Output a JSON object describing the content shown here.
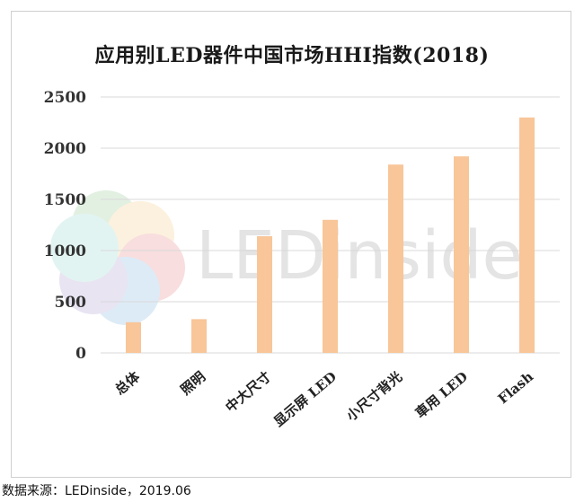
{
  "chart_data": {
    "type": "bar",
    "title": "应用别LED器件中国市场HHI指数(2018)",
    "categories": [
      "总体",
      "照明",
      "中大尺寸",
      "显示屏 LED",
      "小尺寸背光",
      "車用 LED",
      "Flash"
    ],
    "values": [
      300,
      330,
      1140,
      1300,
      1840,
      1920,
      2300
    ],
    "yticks": [
      "0",
      "500",
      "1000",
      "1500",
      "2000",
      "2500"
    ],
    "ylim": [
      0,
      2500
    ],
    "xlabel": "",
    "ylabel": "",
    "grid": true,
    "bar_color": "#f8c699",
    "grid_color": "#d9d9d9"
  },
  "watermark": {
    "text": "LEDinside"
  },
  "source": "数据来源：LEDinside，2019.06"
}
